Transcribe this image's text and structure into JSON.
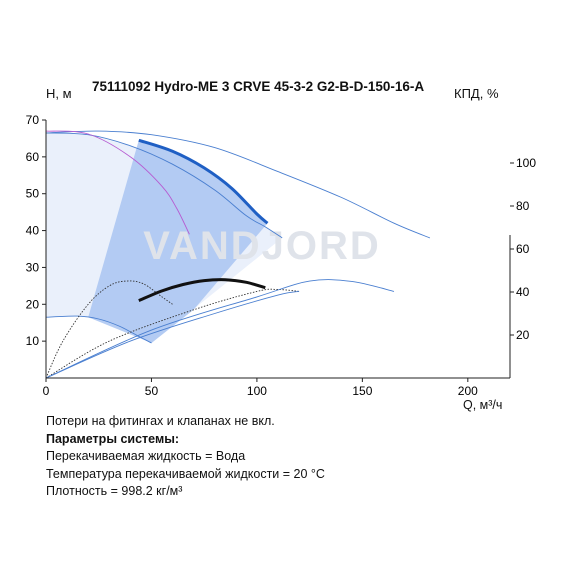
{
  "header": {
    "title": "75111092 Hydro-ME 3 CRVE 45-3-2 G2-B-D-150-16-A",
    "y_left_label": "H, м",
    "y_right_label": "КПД, %",
    "x_label": "Q, м³/ч"
  },
  "watermark": "VANDJORD",
  "info": {
    "line1": "Потери на фитингах и клапанах не вкл.",
    "heading": "Параметры системы:",
    "line2": "Перекачиваемая жидкость = Вода",
    "line3": "Температура перекачиваемой жидкости = 20 °C",
    "line4": "Плотность = 998.2 кг/м³"
  },
  "colors": {
    "envelope": "#eaf0fb",
    "operating_area": "#a9c4f1",
    "pump_curve": "#1f5fc4",
    "thin_curve": "#4a7fd0",
    "efficiency": "#111111",
    "npsh": "#b65bd1",
    "watermark": "#dfe3ea"
  },
  "chart_data": {
    "type": "line",
    "xlim": [
      0,
      220
    ],
    "ylim_left": [
      0,
      70
    ],
    "ylim_right": [
      0,
      120
    ],
    "x_ticks": [
      0,
      50,
      100,
      150,
      200
    ],
    "y_left_ticks": [
      10,
      20,
      30,
      40,
      50,
      60,
      70
    ],
    "y_right_ticks": [
      20,
      40,
      60,
      80,
      100
    ],
    "series": [
      {
        "axis": "left",
        "style": "bold",
        "points": [
          [
            44,
            64.5
          ],
          [
            60,
            61.5
          ],
          [
            75,
            57
          ],
          [
            88,
            51.5
          ],
          [
            100,
            44.5
          ],
          [
            105,
            42
          ]
        ]
      },
      {
        "axis": "left",
        "style": "thin",
        "points": [
          [
            0,
            66.5
          ],
          [
            25,
            67
          ],
          [
            50,
            66
          ],
          [
            80,
            62.5
          ],
          [
            110,
            56
          ],
          [
            140,
            49
          ],
          [
            165,
            42
          ],
          [
            182,
            38
          ]
        ]
      },
      {
        "axis": "left",
        "style": "thin",
        "points": [
          [
            0,
            66.5
          ],
          [
            20,
            66
          ],
          [
            40,
            63
          ],
          [
            60,
            58
          ],
          [
            80,
            51
          ],
          [
            95,
            44
          ],
          [
            104,
            41
          ],
          [
            112,
            38
          ]
        ]
      },
      {
        "axis": "left",
        "style": "thin",
        "points": [
          [
            0,
            16.5
          ],
          [
            15,
            16.8
          ],
          [
            25,
            16
          ],
          [
            35,
            14
          ],
          [
            45,
            11
          ],
          [
            50,
            9.5
          ]
        ]
      },
      {
        "axis": "left",
        "style": "dotted",
        "points": [
          [
            0,
            0
          ],
          [
            8,
            10
          ],
          [
            20,
            20
          ],
          [
            30,
            25
          ],
          [
            38,
            26.3
          ],
          [
            46,
            25.6
          ],
          [
            55,
            22
          ],
          [
            60,
            20
          ]
        ]
      },
      {
        "axis": "left",
        "style": "dotted",
        "points": [
          [
            0,
            0
          ],
          [
            30,
            10
          ],
          [
            70,
            18.5
          ],
          [
            100,
            23.5
          ],
          [
            110,
            24
          ],
          [
            120,
            23.5
          ]
        ]
      },
      {
        "axis": "left",
        "style": "thin",
        "points": [
          [
            0,
            0
          ],
          [
            40,
            10
          ],
          [
            80,
            17.5
          ],
          [
            110,
            22.5
          ],
          [
            120,
            23.5
          ]
        ]
      },
      {
        "axis": "left",
        "style": "thin",
        "points": [
          [
            0,
            0
          ],
          [
            50,
            13
          ],
          [
            100,
            22
          ],
          [
            125,
            26.3
          ],
          [
            145,
            26.2
          ],
          [
            165,
            23.5
          ]
        ]
      },
      {
        "axis": "left",
        "style": "npsh",
        "points": [
          [
            0,
            67
          ],
          [
            20,
            66.2
          ],
          [
            40,
            60
          ],
          [
            55,
            52
          ],
          [
            62,
            46
          ],
          [
            68,
            39
          ]
        ]
      },
      {
        "axis": "right",
        "style": "efficiency",
        "points": [
          [
            44,
            36
          ],
          [
            55,
            40.5
          ],
          [
            65,
            43.5
          ],
          [
            75,
            45.3
          ],
          [
            85,
            45.7
          ],
          [
            95,
            44.5
          ],
          [
            104,
            42
          ]
        ]
      }
    ]
  }
}
